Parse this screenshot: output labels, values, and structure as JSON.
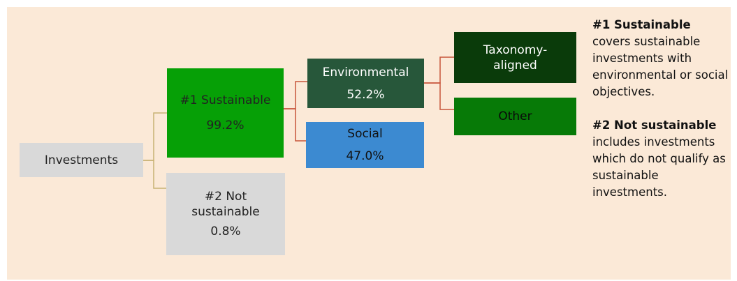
{
  "diagram": {
    "nodes": {
      "investments": {
        "label": "Investments"
      },
      "sustainable": {
        "label": "#1 Sustainable",
        "value": "99.2%"
      },
      "not_sustainable": {
        "label_line1": "#2 Not",
        "label_line2": "sustainable",
        "value": "0.8%"
      },
      "environmental": {
        "label": "Environmental",
        "value": "52.2%"
      },
      "social": {
        "label": "Social",
        "value": "47.0%"
      },
      "taxonomy_aligned": {
        "label_line1": "Taxonomy-",
        "label_line2": "aligned"
      },
      "other": {
        "label": "Other"
      }
    },
    "colors": {
      "panel_background": "#fbe9d7",
      "investments": "#d9d9d9",
      "sustainable": "#06a006",
      "not_sustainable": "#d9d9d9",
      "environmental": "#27573a",
      "social": "#3c8ad1",
      "taxonomy_aligned": "#0a3b0a",
      "other": "#077a07",
      "connector_primary": "#c8b273",
      "connector_secondary": "#c8553a"
    }
  },
  "legend": {
    "sustainable_title": "#1 Sustainable",
    "sustainable_description": "covers sustainable investments with environmental or social objectives.",
    "not_sustainable_title": "#2 Not sustainable",
    "not_sustainable_description": "includes investments which do not qualify as sustainable investments."
  }
}
